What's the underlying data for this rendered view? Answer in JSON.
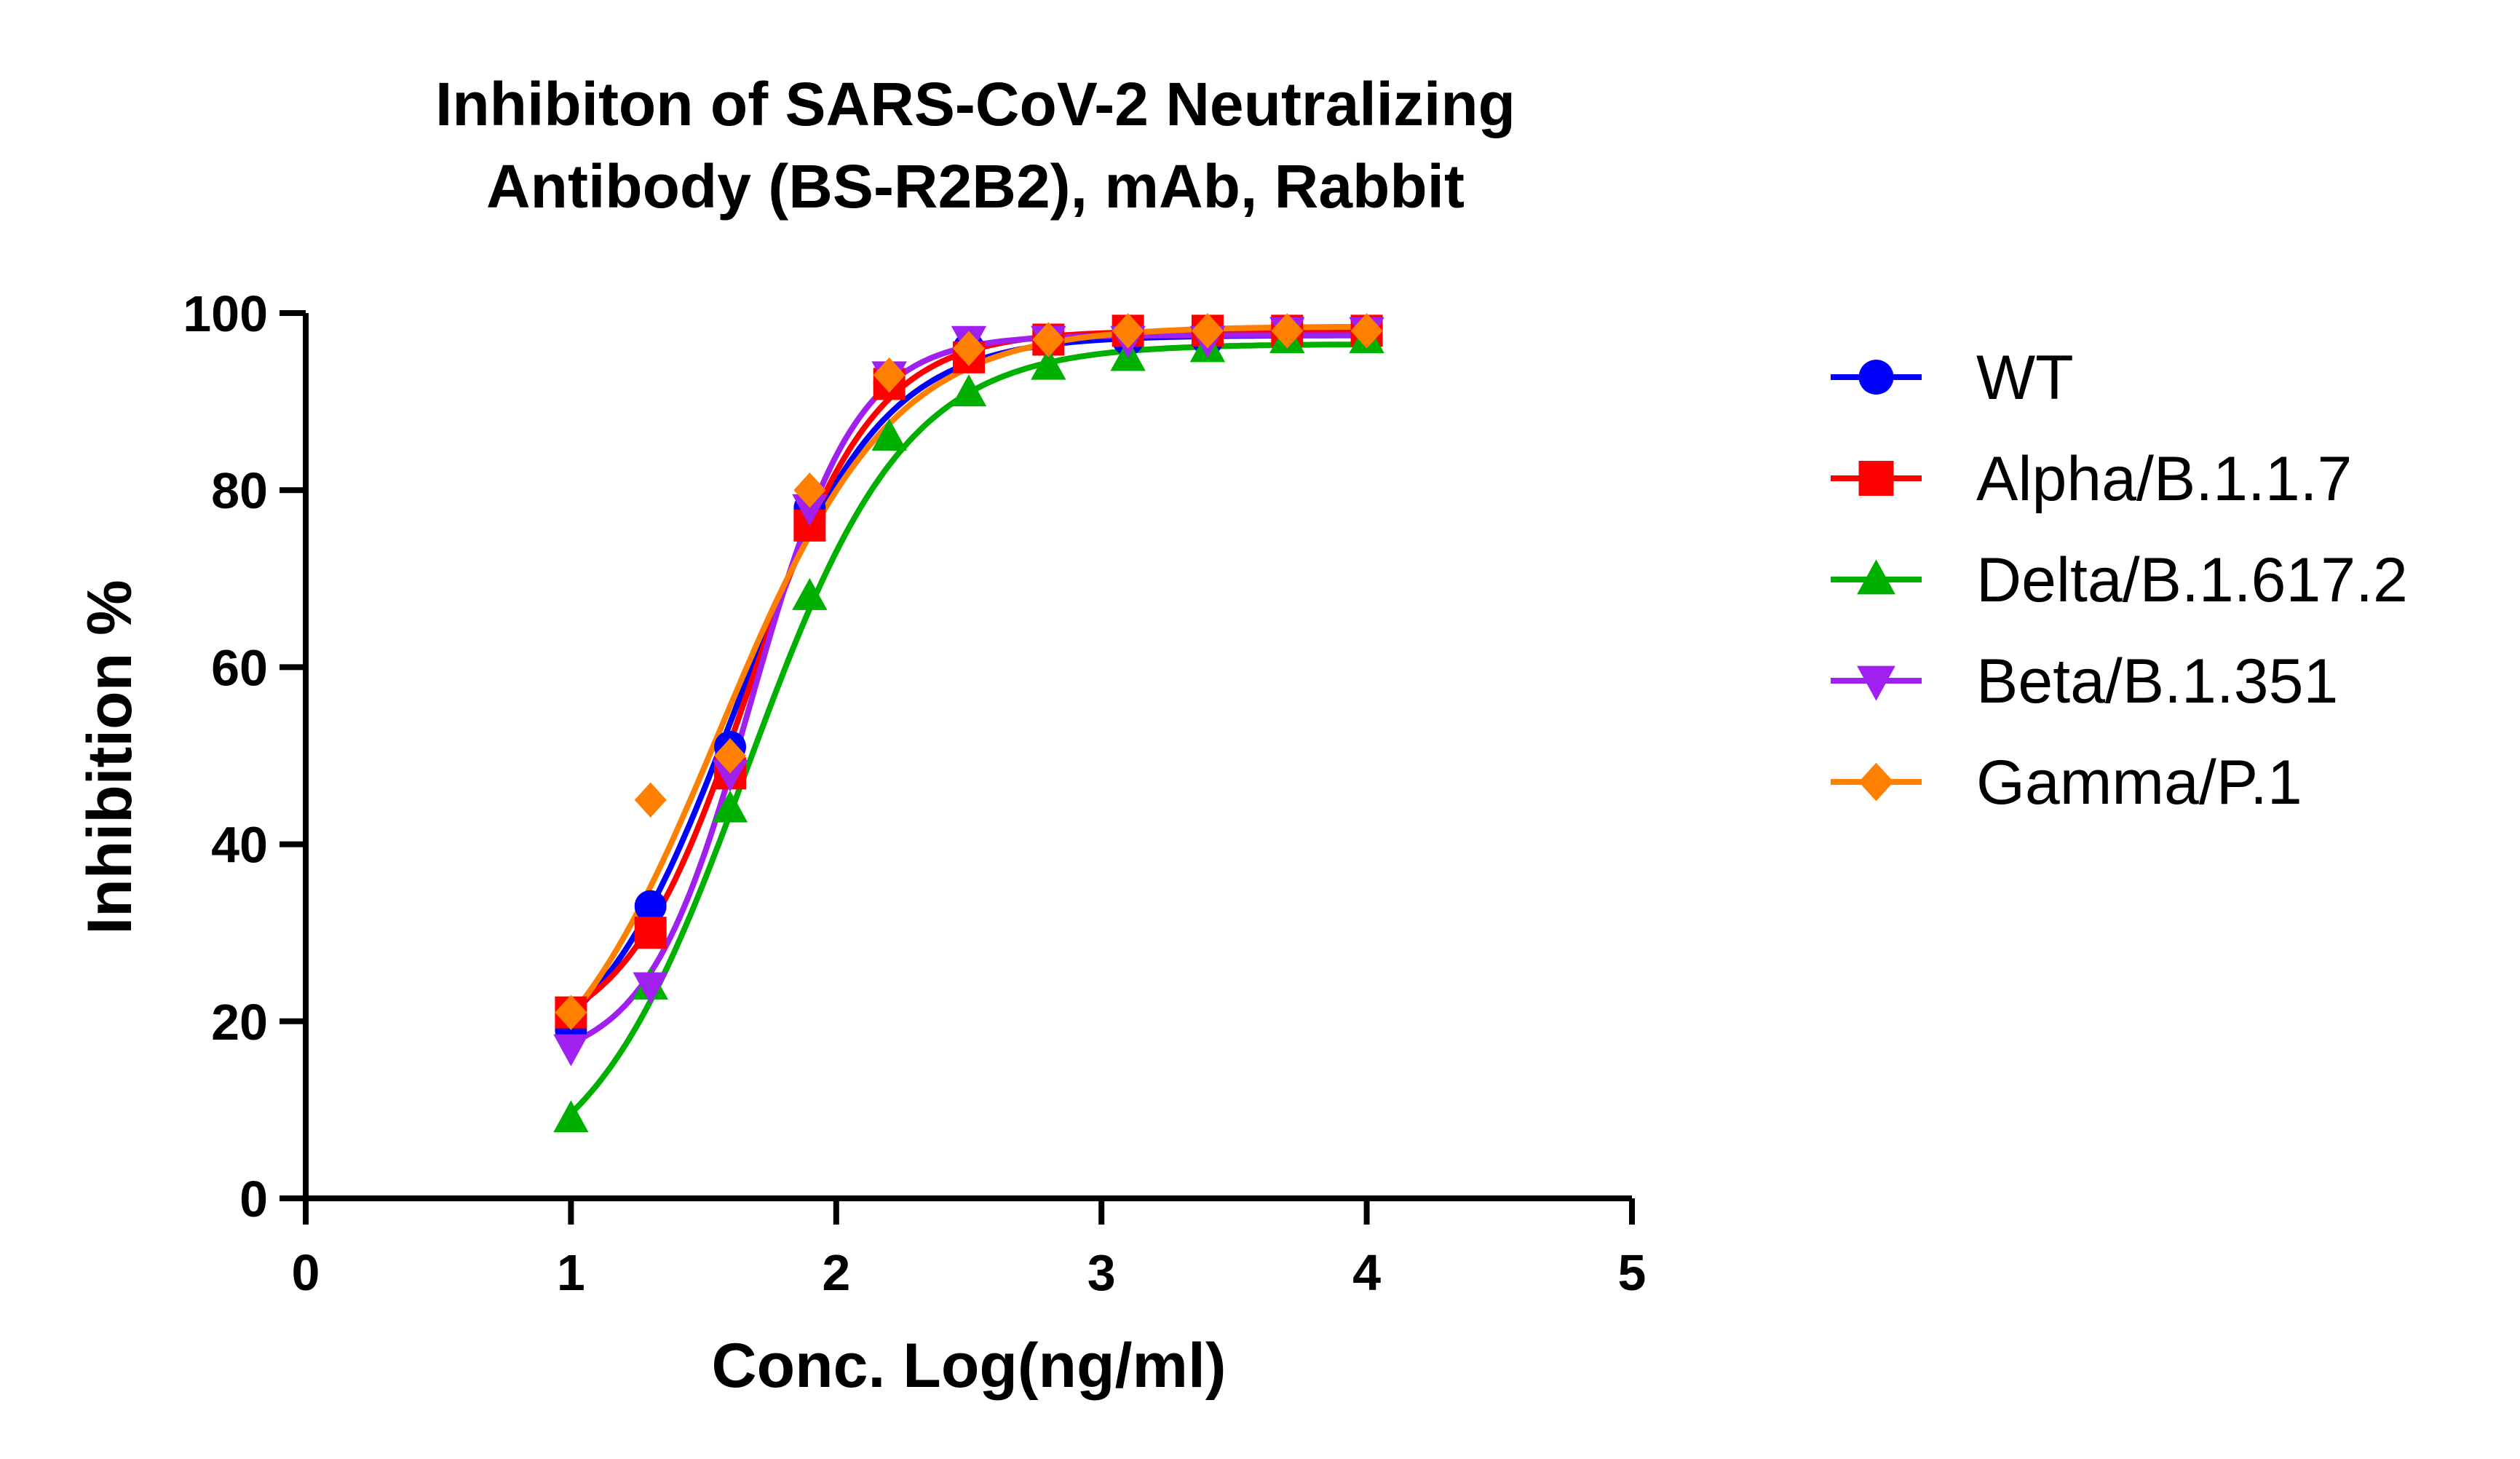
{
  "chart_data": {
    "type": "line",
    "title_lines": [
      "Inhibiton of SARS-CoV-2 Neutralizing",
      "Antibody (BS-R2B2), mAb, Rabbit"
    ],
    "xlabel": "Conc. Log(ng/ml)",
    "ylabel": "Inhibition %",
    "xlim": [
      0,
      5
    ],
    "ylim": [
      0,
      100
    ],
    "xticks": [
      0,
      1,
      2,
      3,
      4,
      5
    ],
    "yticks": [
      0,
      20,
      40,
      60,
      80,
      100
    ],
    "grid": false,
    "legend_position": "right",
    "x": [
      1.0,
      1.3,
      1.6,
      1.9,
      2.2,
      2.5,
      2.8,
      3.1,
      3.4,
      3.7,
      4.0
    ],
    "series": [
      {
        "name": "WT",
        "color": "#0000ff",
        "marker": "circle",
        "values": [
          19,
          33,
          51,
          78,
          92,
          96,
          97,
          97,
          97,
          98,
          98
        ],
        "fit": {
          "bottom": 13,
          "top": 97.5,
          "logEC50": 1.62,
          "hill": 1.6
        }
      },
      {
        "name": "Alpha/B.1.1.7",
        "color": "#ff0000",
        "marker": "square",
        "values": [
          21,
          30,
          48,
          76,
          92,
          95,
          97,
          98,
          98,
          98,
          98
        ],
        "fit": {
          "bottom": 17,
          "top": 98,
          "logEC50": 1.67,
          "hill": 1.85
        }
      },
      {
        "name": "Delta/B.1.617.2",
        "color": "#00b000",
        "marker": "triangle-up",
        "values": [
          9,
          24,
          44,
          68,
          86,
          91,
          94,
          95,
          96,
          97,
          97
        ],
        "fit": {
          "bottom": 0,
          "top": 96.5,
          "logEC50": 1.66,
          "hill": 1.45
        }
      },
      {
        "name": "Beta/B.1.351",
        "color": "#a020f0",
        "marker": "triangle-down",
        "values": [
          17,
          24,
          48,
          78,
          93,
          97,
          97,
          97,
          97,
          98,
          98
        ],
        "fit": {
          "bottom": 15,
          "top": 97.5,
          "logEC50": 1.68,
          "hill": 2.2
        }
      },
      {
        "name": "Gamma/P.1",
        "color": "#ff8000",
        "marker": "diamond",
        "values": [
          21,
          45,
          50,
          80,
          93,
          96,
          97,
          98,
          98,
          98,
          98
        ],
        "fit": {
          "bottom": 7,
          "top": 98.5,
          "logEC50": 1.56,
          "hill": 1.35
        }
      }
    ]
  }
}
